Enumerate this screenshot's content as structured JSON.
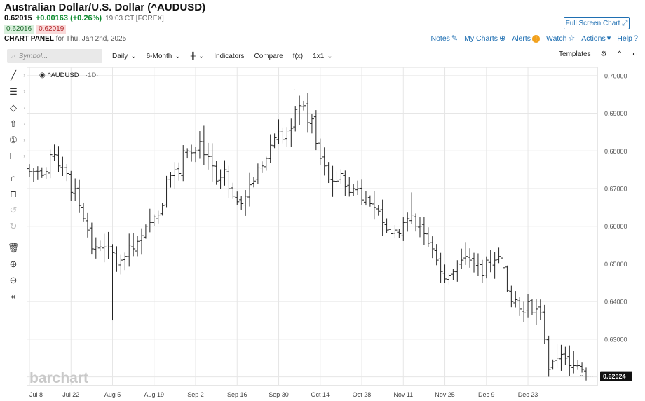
{
  "header": {
    "title": "Australian Dollar/U.S. Dollar (^AUDUSD)",
    "last": "0.62015",
    "change": "+0.00163 (+0.26%)",
    "time_exchange": "19:03 CT [FOREX]",
    "bid": "0.62016",
    "ask": "0.62019",
    "panel_label": "CHART PANEL",
    "panel_date": "for Thu, Jan 2nd, 2025",
    "fullscreen_label": "Full Screen Chart"
  },
  "top_links": {
    "notes": "Notes",
    "my_charts": "My Charts",
    "alerts": "Alerts",
    "alerts_icon": "!",
    "watch": "Watch",
    "actions": "Actions",
    "help": "Help"
  },
  "toolbar": {
    "symbol_placeholder": "Symbol...",
    "interval": "Daily",
    "range": "6-Month",
    "bar_type_icon": "ohlc-bars-icon",
    "indicators": "Indicators",
    "compare": "Compare",
    "fx": "f(x)",
    "layout": "1x1",
    "templates": "Templates"
  },
  "left_tools": [
    "line-draw-icon",
    "fib-icon",
    "shape-icon",
    "arrow-up-icon",
    "number-icon",
    "measure-icon",
    "magnet-icon",
    "lock-icon",
    "undo-icon",
    "redo-icon",
    "trash-icon",
    "zoom-in-icon",
    "zoom-out-icon",
    "collapse-icon"
  ],
  "watermark": "barchart",
  "chart_data": {
    "type": "ohlc",
    "symbol_label": "^AUDUSD",
    "interval_label": "1D",
    "x_tick_labels": [
      "Jul 8",
      "Jul 22",
      "Aug 5",
      "Aug 19",
      "Sep 2",
      "Sep 16",
      "Sep 30",
      "Oct 14",
      "Oct 28",
      "Nov 11",
      "Nov 25",
      "Dec 9",
      "Dec 23"
    ],
    "y_tick_labels": [
      "0.70000",
      "0.69000",
      "0.68000",
      "0.67000",
      "0.66000",
      "0.65000",
      "0.64000",
      "0.63000"
    ],
    "ylim": [
      0.6177,
      0.7022
    ],
    "last_price_label": "0.62024",
    "grid": true,
    "colors": {
      "bars": "#222222",
      "grid": "#e6e6e6",
      "price_tag": "#111111"
    },
    "closes": [
      0.6745,
      0.6745,
      0.6745,
      0.6735,
      0.6745,
      0.679,
      0.679,
      0.676,
      0.6755,
      0.674,
      0.669,
      0.67,
      0.6655,
      0.662,
      0.659,
      0.654,
      0.6545,
      0.6545,
      0.6545,
      0.6545,
      0.653,
      0.65,
      0.651,
      0.652,
      0.655,
      0.654,
      0.656,
      0.6575,
      0.66,
      0.661,
      0.6625,
      0.663,
      0.6655,
      0.6725,
      0.6735,
      0.675,
      0.674,
      0.68,
      0.68,
      0.6795,
      0.68,
      0.6825,
      0.679,
      0.6785,
      0.676,
      0.672,
      0.673,
      0.675,
      0.67,
      0.668,
      0.6665,
      0.666,
      0.668,
      0.671,
      0.672,
      0.6755,
      0.676,
      0.678,
      0.6815,
      0.6835,
      0.685,
      0.683,
      0.685,
      0.686,
      0.691,
      0.692,
      0.692,
      0.6875,
      0.6885,
      0.682,
      0.678,
      0.676,
      0.6725,
      0.672,
      0.672,
      0.674,
      0.6705,
      0.669,
      0.67,
      0.67,
      0.667,
      0.6675,
      0.666,
      0.665,
      0.664,
      0.661,
      0.659,
      0.658,
      0.659,
      0.658,
      0.661,
      0.662,
      0.663,
      0.66,
      0.66,
      0.658,
      0.6555,
      0.654,
      0.651,
      0.648,
      0.646,
      0.647,
      0.648,
      0.65,
      0.651,
      0.652,
      0.651,
      0.65,
      0.65,
      0.647,
      0.651,
      0.65,
      0.651,
      0.652,
      0.649,
      0.643,
      0.64,
      0.6405,
      0.638,
      0.637,
      0.64,
      0.637,
      0.638,
      0.637,
      0.63,
      0.622,
      0.624,
      0.625,
      0.626,
      0.625,
      0.623,
      0.623,
      0.623,
      0.622,
      0.6202
    ]
  }
}
